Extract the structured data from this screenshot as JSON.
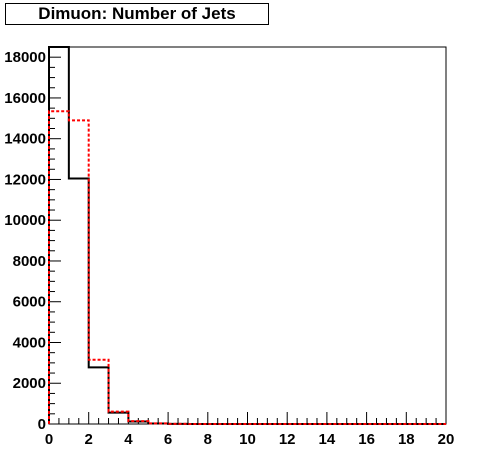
{
  "chart_data": {
    "type": "step",
    "title": "Dimuon: Number of Jets",
    "xlabel": "",
    "ylabel": "",
    "xlim": [
      0,
      20
    ],
    "ylim": [
      0,
      18500
    ],
    "bin_edges": [
      0,
      1,
      2,
      3,
      4,
      5,
      6,
      7,
      8,
      9,
      10,
      11,
      12,
      13,
      14,
      15,
      16,
      17,
      18,
      19,
      20
    ],
    "x_ticks": [
      0,
      2,
      4,
      6,
      8,
      10,
      12,
      14,
      16,
      18,
      20
    ],
    "x_tick_labels": [
      "0",
      "2",
      "4",
      "6",
      "8",
      "10",
      "12",
      "14",
      "16",
      "18",
      "20"
    ],
    "y_ticks": [
      0,
      2000,
      4000,
      6000,
      8000,
      10000,
      12000,
      14000,
      16000,
      18000
    ],
    "y_tick_labels": [
      "0",
      "2000",
      "4000",
      "6000",
      "8000",
      "10000",
      "12000",
      "14000",
      "16000",
      "18000"
    ],
    "grid": false,
    "legend": "none",
    "series": [
      {
        "values": [
          18500,
          12050,
          2780,
          560,
          120,
          25,
          5,
          0,
          0,
          0,
          0,
          0,
          0,
          0,
          0,
          0,
          0,
          0,
          0,
          0
        ],
        "color": "#000000",
        "line_style": "solid"
      },
      {
        "values": [
          15350,
          14900,
          3150,
          610,
          140,
          30,
          6,
          0,
          0,
          0,
          0,
          0,
          0,
          0,
          0,
          0,
          0,
          0,
          0,
          0
        ],
        "color": "#ff0000",
        "line_style": "dotted"
      }
    ]
  }
}
